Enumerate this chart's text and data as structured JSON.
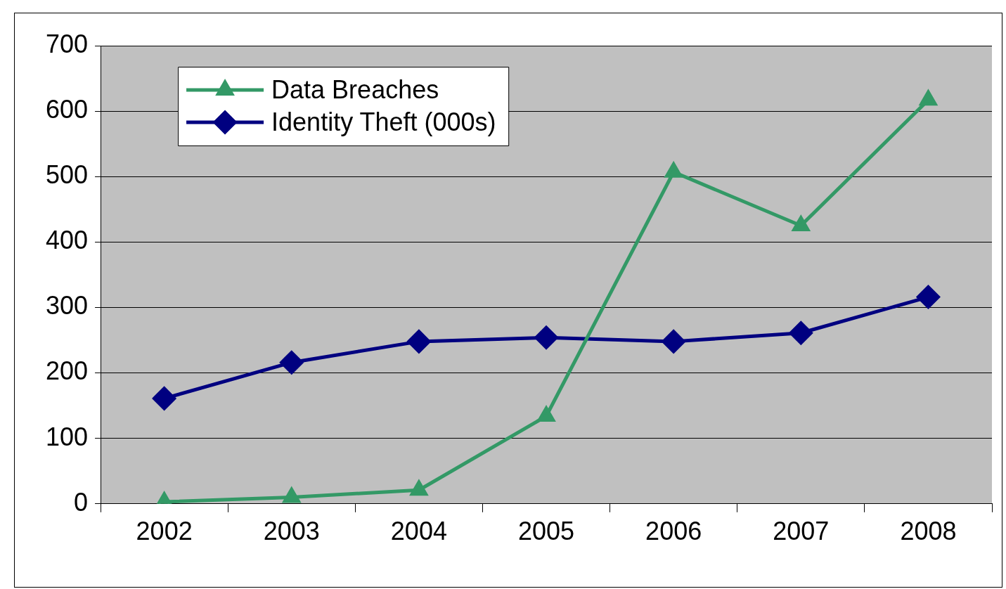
{
  "chart_data": {
    "type": "line",
    "categories": [
      "2002",
      "2003",
      "2004",
      "2005",
      "2006",
      "2007",
      "2008"
    ],
    "series": [
      {
        "name": "Data Breaches",
        "color": "#339966",
        "marker": "triangle",
        "values": [
          3,
          10,
          21,
          134,
          507,
          425,
          617
        ]
      },
      {
        "name": "Identity Theft (000s)",
        "color": "#000080",
        "marker": "diamond",
        "values": [
          161,
          216,
          248,
          254,
          248,
          261,
          316
        ]
      }
    ],
    "ylim": [
      0,
      700
    ],
    "yticks": [
      0,
      100,
      200,
      300,
      400,
      500,
      600,
      700
    ],
    "grid": "y",
    "legend": "top left",
    "line_style": "solid"
  }
}
